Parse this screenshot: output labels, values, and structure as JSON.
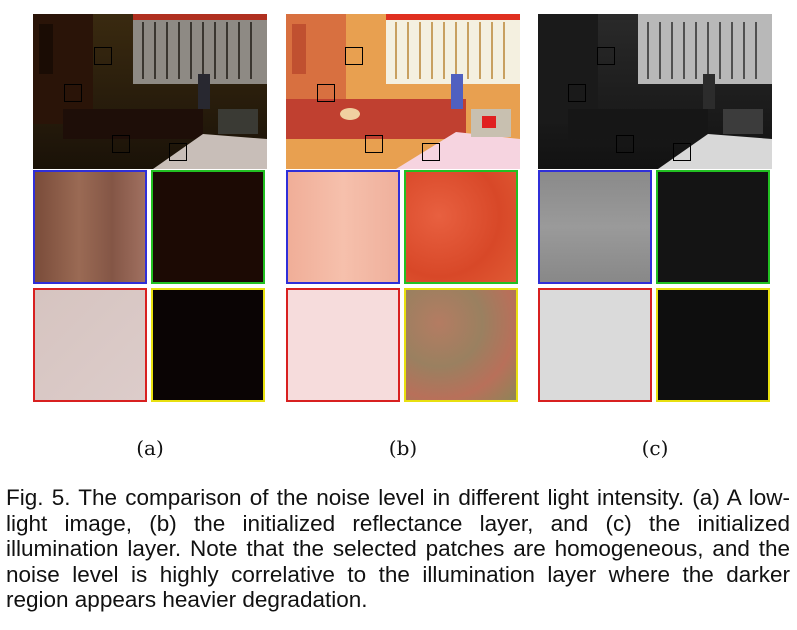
{
  "subfigures": [
    {
      "label": "(a)",
      "variant": "low-light"
    },
    {
      "label": "(b)",
      "variant": "reflectance"
    },
    {
      "label": "(c)",
      "variant": "illumination"
    }
  ],
  "patch_colors": {
    "a": {
      "blue": "#8a5a48",
      "green": "#1c0a04",
      "red": "#d8c8c4",
      "yellow": "#0a0404"
    },
    "b": {
      "blue": "#f2b4a0",
      "green": "#e05030",
      "red": "#f6dcdc",
      "yellow": "#a87c62"
    },
    "c": {
      "blue": "#8e8e8e",
      "green": "#141414",
      "red": "#dadada",
      "yellow": "#0e0e0e"
    }
  },
  "caption": "Fig. 5. The comparison of the noise level in different light intensity. (a) A low-light image, (b) the initialized reflectance layer, and (c) the initialized illumination layer. Note that the selected patches are homogeneous, and the noise level is highly correlative to the illumination layer where the darker region appears heavier degradation."
}
